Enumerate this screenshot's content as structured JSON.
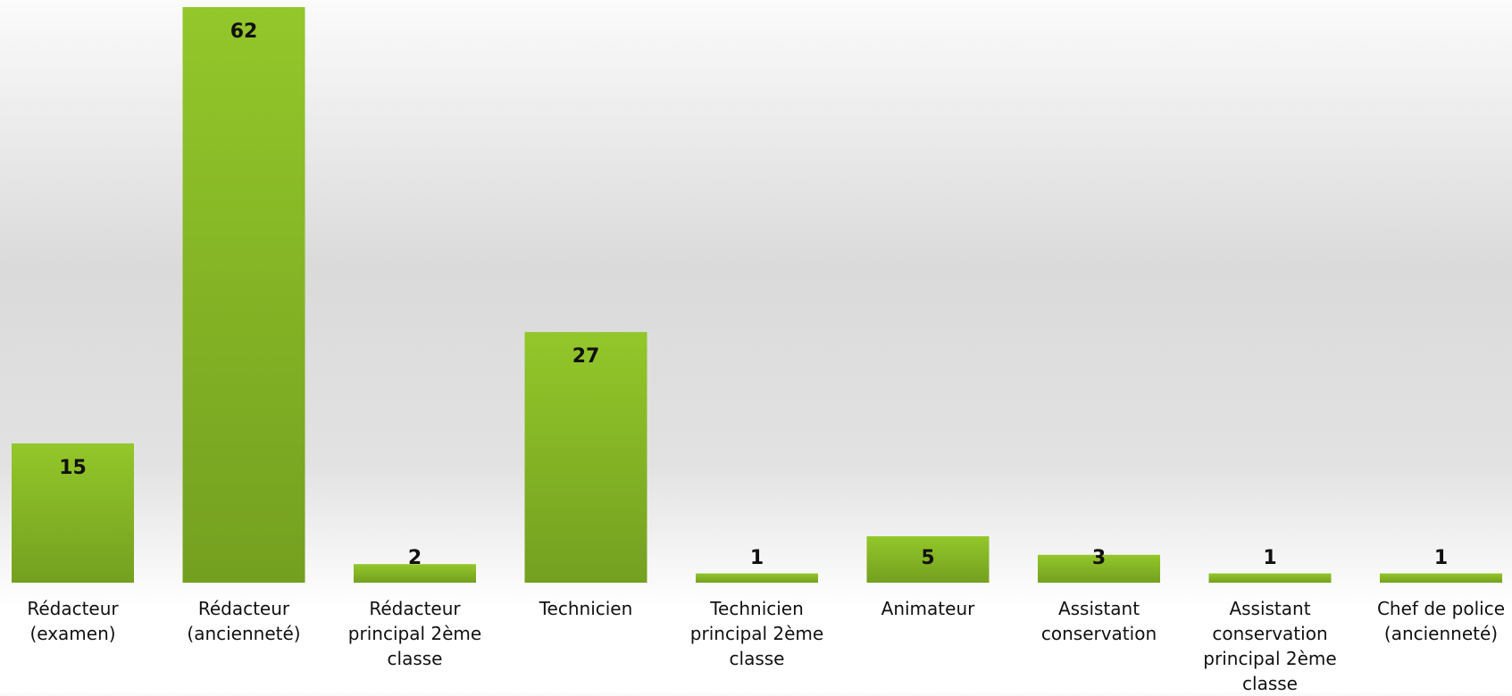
{
  "chart_data": {
    "type": "bar",
    "categories": [
      "Rédacteur (examen)",
      "Rédacteur (ancienneté)",
      "Rédacteur principal 2ème classe",
      "Technicien",
      "Technicien principal 2ème classe",
      "Animateur",
      "Assistant conservation",
      "Assistant conservation principal 2ème classe",
      "Chef de police (ancienneté)"
    ],
    "values": [
      15,
      62,
      2,
      27,
      1,
      5,
      3,
      1,
      1
    ],
    "color": "#85b426"
  }
}
